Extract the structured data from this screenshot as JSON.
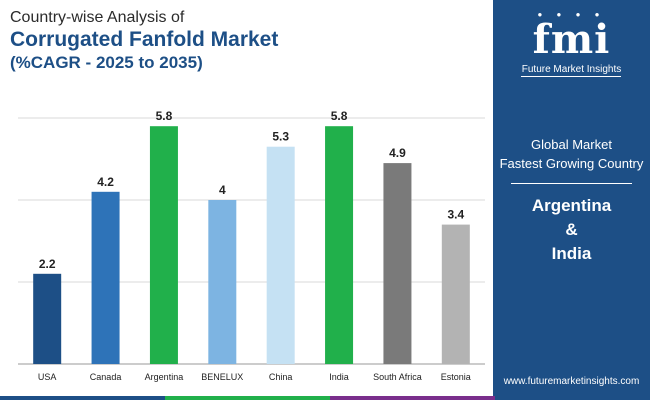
{
  "title": {
    "line1": "Country-wise Analysis of",
    "line2": "Corrugated Fanfold Market",
    "line3": "(%CAGR - 2025 to 2035)"
  },
  "chart_data": {
    "type": "bar",
    "categories": [
      "USA",
      "Canada",
      "Argentina",
      "BENELUX",
      "China",
      "India",
      "South Africa",
      "Estonia"
    ],
    "values": [
      2.2,
      4.2,
      5.8,
      4,
      5.3,
      5.8,
      4.9,
      3.4
    ],
    "value_labels": [
      "2.2",
      "4.2",
      "5.8",
      "4",
      "5.3",
      "5.8",
      "4.9",
      "3.4"
    ],
    "colors": [
      "#1d4f86",
      "#2e73b8",
      "#21b04b",
      "#7db4e2",
      "#c5e1f3",
      "#21b04b",
      "#7a7a7a",
      "#b3b3b3"
    ],
    "ylim": [
      0,
      6
    ],
    "grid": true,
    "xlabel": "",
    "ylabel": ""
  },
  "side_panel": {
    "logo_text": "fmi",
    "logo_subtitle": "Future Market Insights",
    "label_line1": "Global Market",
    "label_line2": "Fastest Growing Country",
    "highlight_line1": "Argentina",
    "highlight_line2": "&",
    "highlight_line3": "India",
    "website": "www.futuremarketinsights.com",
    "background_color": "#1d4f86"
  },
  "stripe_colors": [
    "#1d4f86",
    "#21b04b",
    "#7a2e8c",
    "#1d4f86"
  ]
}
